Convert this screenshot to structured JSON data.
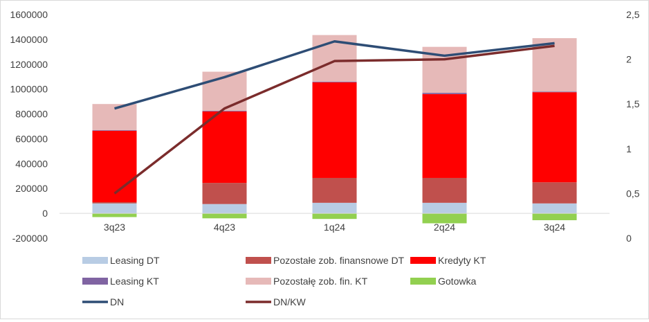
{
  "chart_data": {
    "type": "bar",
    "stacked": true,
    "categories": [
      "3q23",
      "4q23",
      "1q24",
      "2q24",
      "3q24"
    ],
    "series": [
      {
        "name": "Leasing DT",
        "values": [
          80000,
          75000,
          85000,
          85000,
          80000
        ],
        "color": "#b8cce4"
      },
      {
        "name": "Pozostałe zob. finansnowe DT",
        "values": [
          10000,
          170000,
          200000,
          200000,
          170000
        ],
        "color": "#c0504d"
      },
      {
        "name": "Kredyty KT",
        "values": [
          575000,
          575000,
          770000,
          675000,
          725000
        ],
        "color": "#ff0000"
      },
      {
        "name": "Leasing KT",
        "values": [
          5000,
          5000,
          5000,
          10000,
          5000
        ],
        "color": "#8064a2"
      },
      {
        "name": "Pozostałę zob. fin. KT",
        "values": [
          210000,
          315000,
          375000,
          370000,
          430000
        ],
        "color": "#e6b9b8"
      },
      {
        "name": "Gotowka",
        "values": [
          -30000,
          -40000,
          -45000,
          -80000,
          -55000
        ],
        "color": "#92d050"
      }
    ],
    "line_series": [
      {
        "name": "DN",
        "values": [
          1.45,
          1.8,
          2.2,
          2.04,
          2.18
        ],
        "color": "#2e4d75",
        "axis": "right"
      },
      {
        "name": "DN/KW",
        "values": [
          0.5,
          1.45,
          1.98,
          2.0,
          2.15
        ],
        "color": "#7b2c2c",
        "axis": "right"
      }
    ],
    "y_left": {
      "ylim": [
        -200000,
        1600000
      ],
      "ticks": [
        -200000,
        0,
        200000,
        400000,
        600000,
        800000,
        1000000,
        1200000,
        1400000,
        1600000
      ],
      "tick_labels": [
        "-200000",
        "0",
        "200000",
        "400000",
        "600000",
        "800000",
        "1000000",
        "1200000",
        "1400000",
        "1600000"
      ]
    },
    "y_right": {
      "ylim": [
        0,
        2.5
      ],
      "ticks": [
        0,
        0.5,
        1,
        1.5,
        2,
        2.5
      ],
      "tick_labels": [
        "0",
        "0,5",
        "1",
        "1,5",
        "2",
        "2,5"
      ]
    },
    "grid": false,
    "legend_position": "bottom"
  }
}
